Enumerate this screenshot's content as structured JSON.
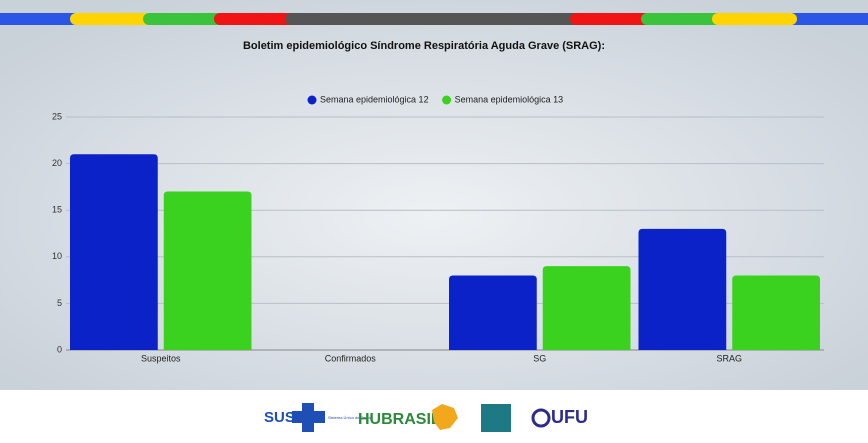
{
  "chart_data": {
    "type": "bar",
    "title": "Boletim epidemiológico Síndrome Respiratória Aguda Grave (SRAG):",
    "categories": [
      "Suspeitos",
      "Confirmados",
      "SG",
      "SRAG"
    ],
    "series": [
      {
        "name": "Semana epidemiológica 12",
        "color": "#0a22c8",
        "values": [
          21,
          0,
          8,
          13
        ]
      },
      {
        "name": "Semana epidemiológica 13",
        "color": "#3bd11f",
        "values": [
          17,
          0,
          9,
          8
        ]
      }
    ],
    "ylim": [
      0,
      25
    ],
    "yticks": [
      0,
      5,
      10,
      15,
      20,
      25
    ],
    "grid": true,
    "legend": "top"
  },
  "footer": {
    "logos": [
      "SUS",
      "Sistema Único de Saúde",
      "HUBRASIL",
      "UFU"
    ]
  }
}
